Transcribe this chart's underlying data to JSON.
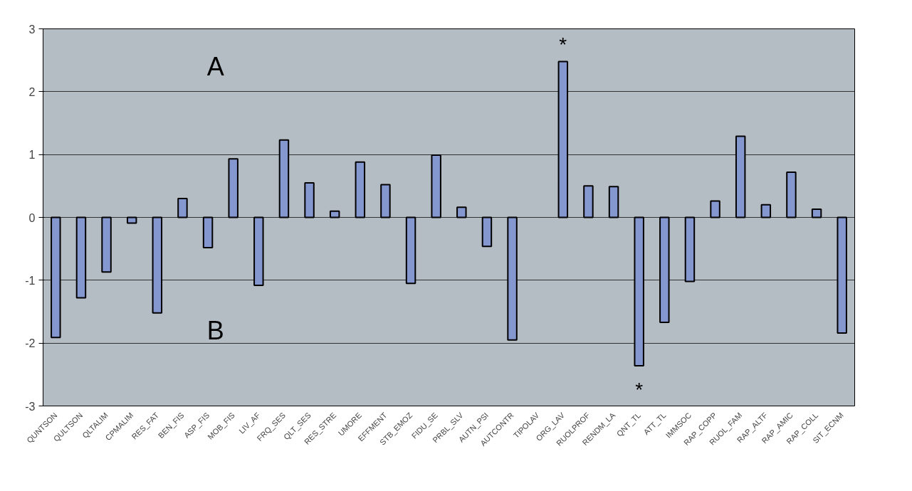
{
  "chart_data": {
    "type": "bar",
    "categories": [
      "QUNTSON",
      "QULTSON",
      "QLTALIM",
      "CPMALIM",
      "RES_FAT",
      "BEN_FIS",
      "ASP_FIS",
      "MOB_FIS",
      "LIV_AF",
      "FRQ_SES",
      "QLT_SES",
      "RES_STRE",
      "UMORE",
      "EFFMENT",
      "STB_EMOZ",
      "FIDU_SE",
      "PRBL_SLV",
      "AUTN_PSI",
      "AUTCONTR",
      "TIPOLAV",
      "ORG_LAV",
      "RUOLPROF",
      "RENDM_LA",
      "QNT_TL",
      "ATT_TL",
      "IMMSOC",
      "RAP_COPP",
      "RUOL_FAM",
      "RAP_ALTF",
      "RAP_AMIC",
      "RAP_COLL",
      "SIT_ECNM"
    ],
    "values": [
      -1.91,
      -1.28,
      -0.87,
      -0.09,
      -1.52,
      0.3,
      -0.48,
      0.93,
      -1.08,
      1.23,
      0.55,
      0.1,
      0.88,
      0.52,
      -1.05,
      0.99,
      0.16,
      -0.46,
      -1.95,
      null,
      2.48,
      0.5,
      0.49,
      -2.36,
      -1.67,
      -1.02,
      0.26,
      1.29,
      0.2,
      0.72,
      0.13,
      -1.84
    ],
    "color": "#8497cf",
    "ylim": [
      -3,
      3
    ],
    "yticks": [
      -3,
      -2,
      -1,
      0,
      1,
      2,
      3
    ],
    "grid": "y",
    "annotations": [
      "A",
      "B",
      "*",
      "*"
    ]
  }
}
